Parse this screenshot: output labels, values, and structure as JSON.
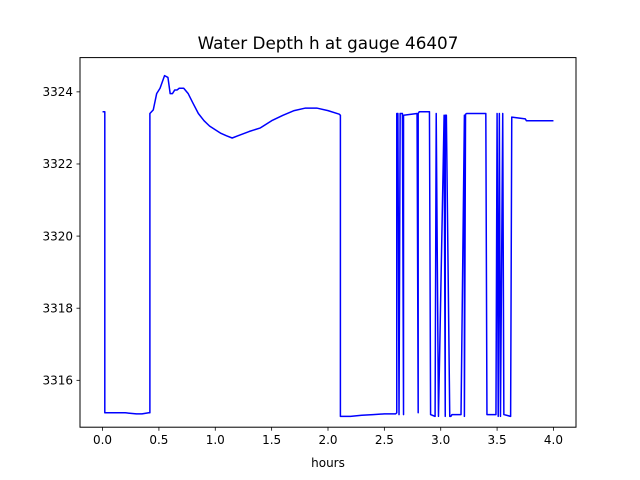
{
  "chart_data": {
    "type": "line",
    "title": "Water Depth h at gauge 46407",
    "xlabel": "hours",
    "ylabel": "",
    "xlim": [
      -0.2,
      4.2
    ],
    "ylim": [
      3314.7,
      3324.95
    ],
    "xticks": [
      0.0,
      0.5,
      1.0,
      1.5,
      2.0,
      2.5,
      3.0,
      3.5,
      4.0
    ],
    "xtick_labels": [
      "0.0",
      "0.5",
      "1.0",
      "1.5",
      "2.0",
      "2.5",
      "3.0",
      "3.5",
      "4.0"
    ],
    "yticks": [
      3316,
      3318,
      3320,
      3322,
      3324
    ],
    "ytick_labels": [
      "3316",
      "3318",
      "3320",
      "3322",
      "3324"
    ],
    "grid": false,
    "series": [
      {
        "color": "#0000ff",
        "x": [
          0.0,
          0.02,
          0.02,
          0.1,
          0.2,
          0.3,
          0.35,
          0.41,
          0.42,
          0.42,
          0.45,
          0.48,
          0.51,
          0.55,
          0.58,
          0.6,
          0.62,
          0.64,
          0.66,
          0.68,
          0.72,
          0.76,
          0.8,
          0.85,
          0.9,
          0.95,
          1.0,
          1.05,
          1.1,
          1.15,
          1.2,
          1.3,
          1.4,
          1.5,
          1.6,
          1.7,
          1.8,
          1.9,
          2.0,
          2.1,
          2.11,
          2.11,
          2.2,
          2.3,
          2.4,
          2.5,
          2.6,
          2.61,
          2.61,
          2.62,
          2.63,
          2.64,
          2.66,
          2.67,
          2.67,
          2.79,
          2.8,
          2.8,
          2.81,
          2.9,
          2.91,
          2.91,
          2.95,
          2.96,
          2.96,
          2.98,
          3.03,
          3.04,
          3.04,
          3.05,
          3.08,
          3.09,
          3.09,
          3.1,
          3.18,
          3.21,
          3.21,
          3.22,
          3.23,
          3.4,
          3.41,
          3.41,
          3.49,
          3.5,
          3.51,
          3.52,
          3.53,
          3.55,
          3.55,
          3.56,
          3.62,
          3.63,
          3.63,
          3.75,
          3.76,
          3.76,
          3.8,
          3.9,
          4.0
        ],
        "y": [
          3323.45,
          3323.45,
          3315.1,
          3315.1,
          3315.1,
          3315.07,
          3315.07,
          3315.1,
          3315.1,
          3323.4,
          3323.5,
          3323.95,
          3324.1,
          3324.45,
          3324.4,
          3323.95,
          3323.95,
          3324.05,
          3324.05,
          3324.1,
          3324.1,
          3323.95,
          3323.7,
          3323.4,
          3323.2,
          3323.05,
          3322.95,
          3322.85,
          3322.78,
          3322.72,
          3322.78,
          3322.9,
          3323.0,
          3323.2,
          3323.35,
          3323.48,
          3323.55,
          3323.55,
          3323.48,
          3323.38,
          3323.35,
          3315.0,
          3315.0,
          3315.03,
          3315.05,
          3315.07,
          3315.07,
          3315.1,
          3323.4,
          3323.4,
          3315.05,
          3323.4,
          3323.4,
          3315.05,
          3323.35,
          3323.4,
          3315.1,
          3323.4,
          3323.45,
          3323.45,
          3315.1,
          3315.05,
          3315.0,
          3323.4,
          3323.35,
          3315.0,
          3323.35,
          3315.0,
          3323.35,
          3323.35,
          3315.0,
          3315.0,
          3315.0,
          3315.05,
          3315.05,
          3323.35,
          3315.0,
          3323.38,
          3323.4,
          3323.4,
          3315.05,
          3315.05,
          3315.05,
          3323.4,
          3315.0,
          3323.4,
          3315.0,
          3323.4,
          3323.35,
          3315.05,
          3315.0,
          3323.3,
          3323.3,
          3323.25,
          3323.2,
          3323.2,
          3323.2,
          3323.2,
          3323.2
        ]
      }
    ]
  }
}
